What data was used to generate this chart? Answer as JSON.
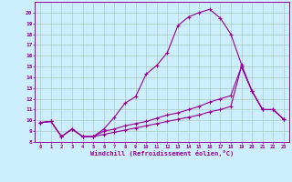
{
  "xlabel": "Windchill (Refroidissement éolien,°C)",
  "bg_color": "#cceeff",
  "line_color": "#990099",
  "grid_color": "#aaccbb",
  "xlim": [
    -0.5,
    23.5
  ],
  "ylim": [
    8,
    21
  ],
  "yticks": [
    8,
    9,
    10,
    11,
    12,
    13,
    14,
    15,
    16,
    17,
    18,
    19,
    20
  ],
  "xticks": [
    0,
    1,
    2,
    3,
    4,
    5,
    6,
    7,
    8,
    9,
    10,
    11,
    12,
    13,
    14,
    15,
    16,
    17,
    18,
    19,
    20,
    21,
    22,
    23
  ],
  "line1_y": [
    9.8,
    9.9,
    8.5,
    9.2,
    8.5,
    8.5,
    9.2,
    10.3,
    11.6,
    12.2,
    14.3,
    15.1,
    16.3,
    18.8,
    19.6,
    20.0,
    20.3,
    19.5,
    18.0,
    15.2,
    12.7,
    11.0,
    11.0,
    10.1
  ],
  "line2_y": [
    9.8,
    9.9,
    8.5,
    9.2,
    8.5,
    8.5,
    9.0,
    9.2,
    9.5,
    9.7,
    9.9,
    10.2,
    10.5,
    10.7,
    11.0,
    11.3,
    11.7,
    12.0,
    12.3,
    15.0,
    12.7,
    11.0,
    11.0,
    10.1
  ],
  "line3_y": [
    9.8,
    9.9,
    8.5,
    9.2,
    8.5,
    8.5,
    8.7,
    8.9,
    9.1,
    9.3,
    9.5,
    9.7,
    9.9,
    10.1,
    10.3,
    10.5,
    10.8,
    11.0,
    11.3,
    15.0,
    12.7,
    11.0,
    11.0,
    10.1
  ]
}
